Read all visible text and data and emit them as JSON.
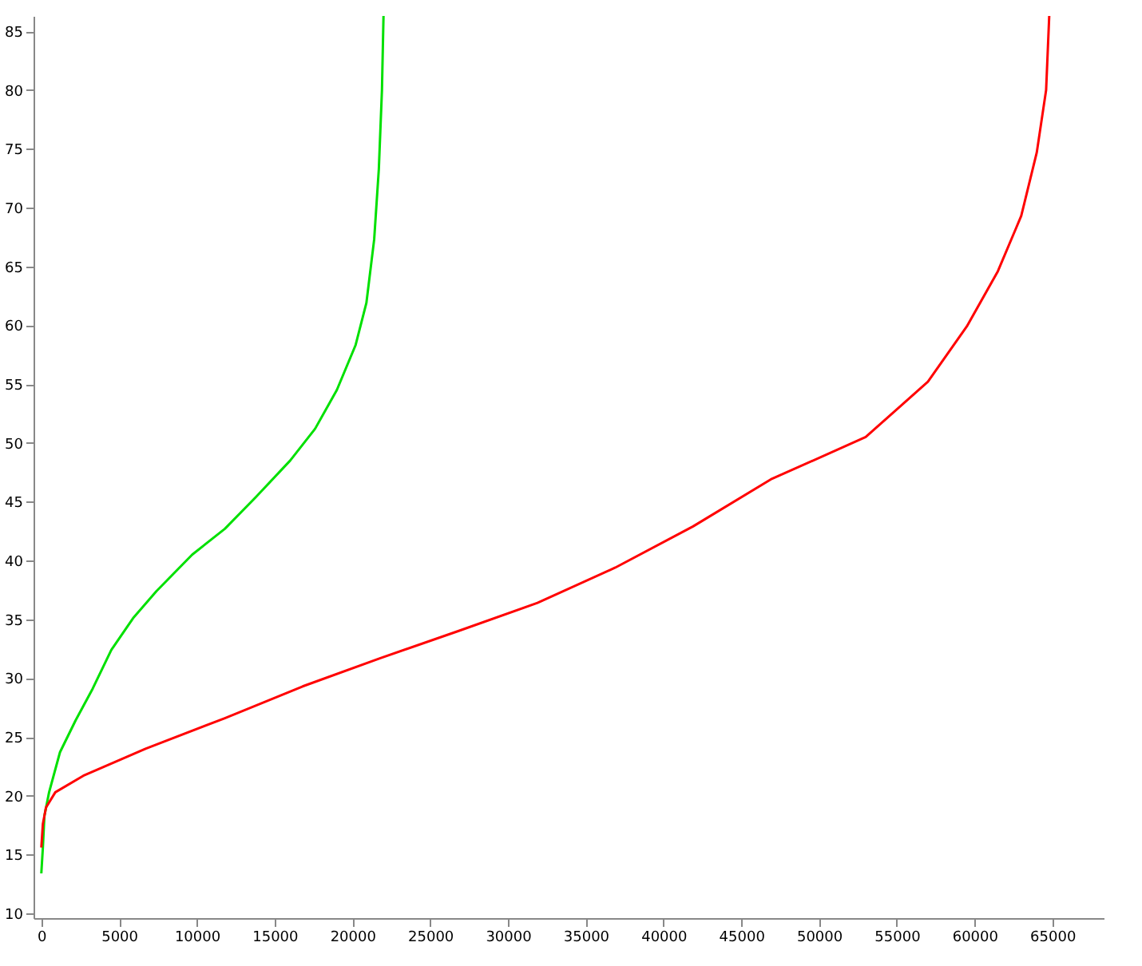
{
  "chart_data": {
    "type": "line",
    "xlim": [
      -500,
      68300
    ],
    "xticks": [
      0,
      5000,
      10000,
      15000,
      20000,
      25000,
      30000,
      35000,
      40000,
      45000,
      50000,
      55000,
      60000,
      65000
    ],
    "ylim": [
      9.6,
      86.3
    ],
    "yticks": [
      10,
      15,
      20,
      25,
      30,
      35,
      40,
      45,
      50,
      55,
      60,
      65,
      70,
      75,
      80,
      85
    ],
    "grid": false,
    "legend": false,
    "marker": "none",
    "line_style": "solid",
    "series": [
      {
        "color": "#00e000",
        "x": [
          0,
          100,
          200,
          500,
          1200,
          2200,
          3300,
          4500,
          5900,
          7400,
          9700,
          11800,
          13800,
          16000,
          17600,
          19000,
          20200,
          20900,
          21400,
          21700,
          21900,
          22000
        ],
        "values": [
          13.4,
          15.6,
          18.3,
          20.3,
          23.7,
          26.4,
          29.1,
          32.4,
          35.1,
          37.4,
          40.5,
          42.7,
          45.4,
          48.5,
          51.2,
          54.5,
          58.3,
          61.9,
          67.3,
          73.3,
          80.0,
          86.3
        ]
      },
      {
        "color": "#ff0000",
        "x": [
          0,
          100,
          300,
          900,
          2700,
          6700,
          11800,
          16800,
          21800,
          26800,
          31900,
          36900,
          41900,
          46900,
          53000,
          57000,
          59500,
          61500,
          63000,
          64000,
          64600,
          64800
        ],
        "values": [
          15.6,
          17.6,
          19.0,
          20.3,
          21.7,
          24.0,
          26.6,
          29.3,
          31.7,
          34.0,
          36.4,
          39.4,
          42.9,
          46.9,
          50.5,
          55.2,
          59.9,
          64.6,
          69.3,
          74.7,
          80.0,
          86.3
        ]
      }
    ]
  }
}
